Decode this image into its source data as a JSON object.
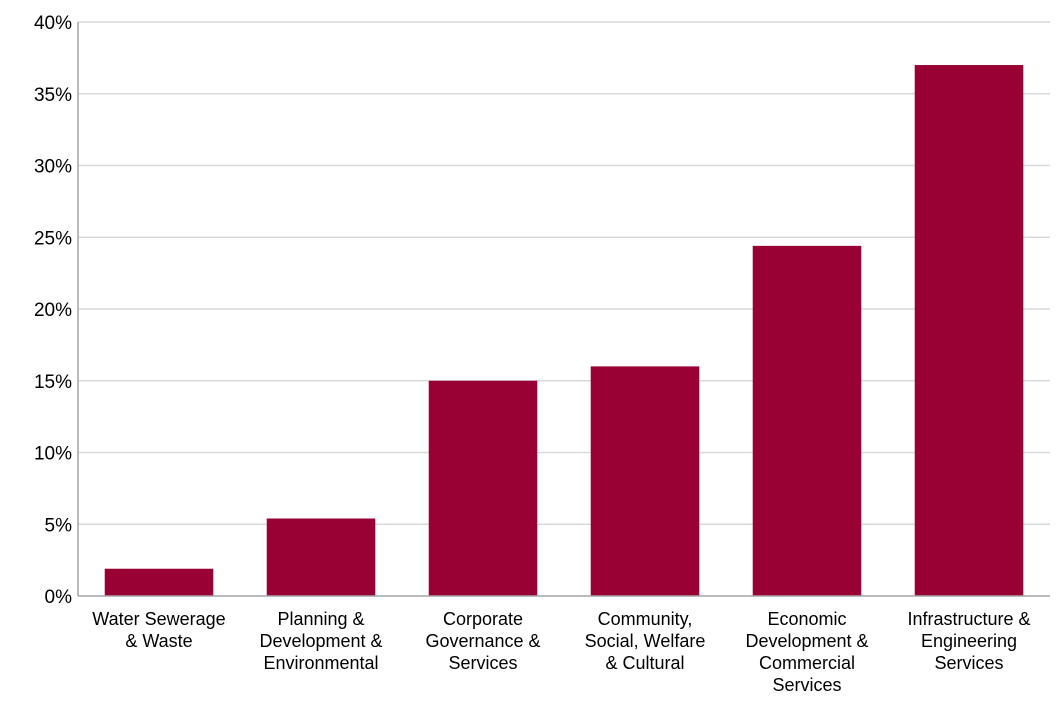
{
  "chart_data": {
    "type": "bar",
    "title": "",
    "xlabel": "",
    "ylabel": "",
    "categories": [
      [
        "Water Sewerage",
        "& Waste"
      ],
      [
        "Planning &",
        "Development &",
        "Environmental"
      ],
      [
        "Corporate",
        "Governance &",
        "Services"
      ],
      [
        "Community,",
        "Social, Welfare",
        "& Cultural"
      ],
      [
        "Economic",
        "Development &",
        "Commercial",
        "Services"
      ],
      [
        "Infrastructure &",
        "Engineering",
        "Services"
      ]
    ],
    "values": [
      1.9,
      5.4,
      15.0,
      16.0,
      24.4,
      37.0
    ],
    "value_unit": "%",
    "ylim": [
      0,
      40
    ],
    "yticks": [
      "0%",
      "5%",
      "10%",
      "15%",
      "20%",
      "25%",
      "30%",
      "35%",
      "40%"
    ],
    "ytick_values": [
      0,
      5,
      10,
      15,
      20,
      25,
      30,
      35,
      40
    ],
    "grid": true,
    "legend": "none",
    "colors": {
      "bar": "#990033",
      "grid": "#d9d9d9",
      "axis": "#a6a6a6"
    }
  }
}
